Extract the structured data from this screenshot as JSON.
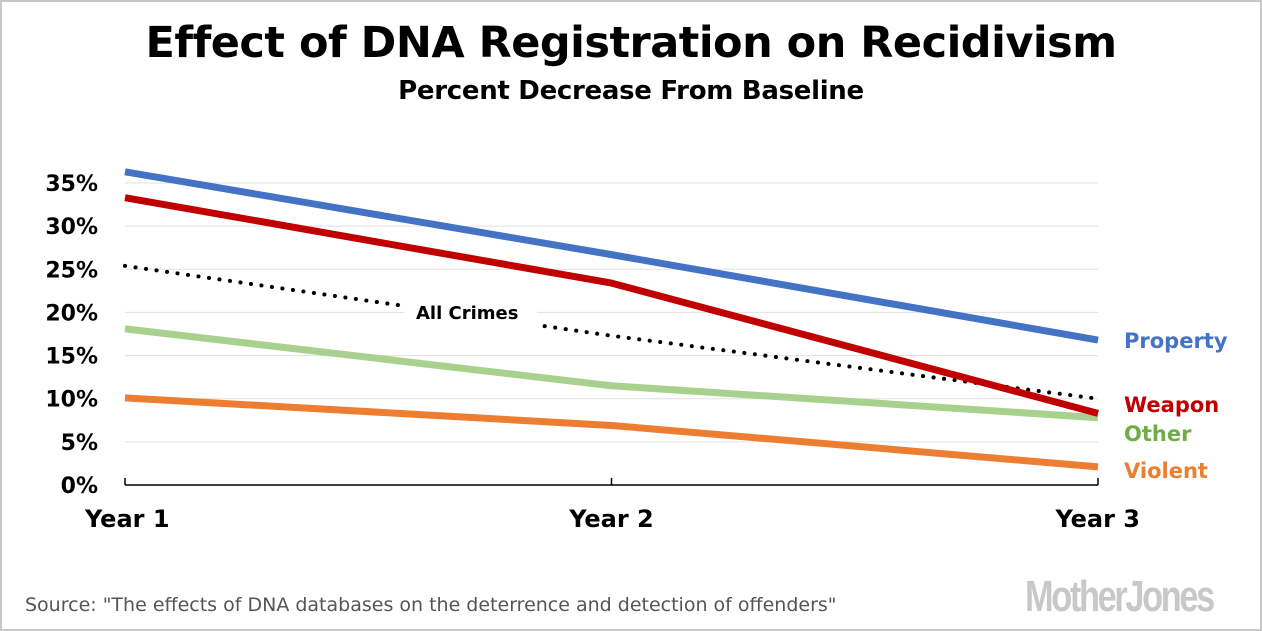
{
  "chart_data": {
    "type": "line",
    "title": "Effect of DNA Registration on Recidivism",
    "subtitle": "Percent Decrease From Baseline",
    "xlabel": "",
    "ylabel": "",
    "categories": [
      "Year 1",
      "Year 2",
      "Year 3"
    ],
    "ylim": [
      0,
      35
    ],
    "yticks": [
      0,
      5,
      10,
      15,
      20,
      25,
      30,
      35
    ],
    "ytick_labels": [
      "0%",
      "5%",
      "10%",
      "15%",
      "20%",
      "25%",
      "30%",
      "35%"
    ],
    "grid": true,
    "legend": "inline-right",
    "series": [
      {
        "name": "Property",
        "values": [
          36.3,
          26.7,
          16.8
        ],
        "color": "#4472C4",
        "label_color": "#4472C4",
        "style": "solid"
      },
      {
        "name": "Weapon",
        "values": [
          33.3,
          23.4,
          8.3
        ],
        "color": "#C00000",
        "label_color": "#C00000",
        "style": "solid"
      },
      {
        "name": "All Crimes",
        "values": [
          25.4,
          17.3,
          10.0
        ],
        "color": "#000000",
        "label_color": "#000000",
        "style": "dotted"
      },
      {
        "name": "Other",
        "values": [
          18.1,
          11.5,
          7.8
        ],
        "color": "#A9D18E",
        "label_color": "#70AD47",
        "style": "solid"
      },
      {
        "name": "Violent",
        "values": [
          10.1,
          6.9,
          2.1
        ],
        "color": "#ED7D31",
        "label_color": "#ED7D31",
        "style": "solid"
      }
    ],
    "annotations": [
      {
        "text": "All Crimes",
        "series": "All Crimes"
      }
    ]
  },
  "source": "Source: \"The effects of DNA databases on the deterrence and detection of offenders\"",
  "logo": "MotherJones"
}
